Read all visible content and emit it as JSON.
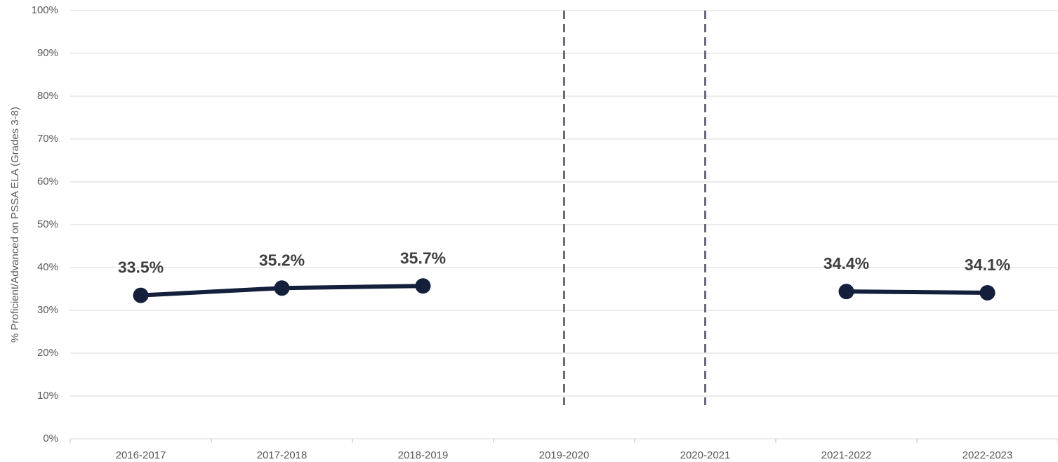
{
  "chart_data": {
    "type": "line",
    "y_label": "% Proficient/Advanced on PSSA ELA (Grades 3-8)",
    "categories": [
      "2016-2017",
      "2017-2018",
      "2018-2019",
      "2019-2020",
      "2020-2021",
      "2021-2022",
      "2022-2023"
    ],
    "series": [
      {
        "color": "#141f3c",
        "values": [
          33.5,
          35.2,
          35.7,
          null,
          null,
          34.4,
          34.1
        ],
        "value_labels": [
          "33.5%",
          "35.2%",
          "35.7%",
          null,
          null,
          "34.4%",
          "34.1%"
        ]
      }
    ],
    "ylim": [
      0,
      100
    ],
    "yticks": [
      {
        "value": 0,
        "label": "0%"
      },
      {
        "value": 10,
        "label": "10%"
      },
      {
        "value": 20,
        "label": "20%"
      },
      {
        "value": 30,
        "label": "30%"
      },
      {
        "value": 40,
        "label": "40%"
      },
      {
        "value": 50,
        "label": "50%"
      },
      {
        "value": 60,
        "label": "60%"
      },
      {
        "value": 70,
        "label": "70%"
      },
      {
        "value": 80,
        "label": "80%"
      },
      {
        "value": 90,
        "label": "90%"
      },
      {
        "value": 100,
        "label": "100%"
      }
    ],
    "grid": true
  }
}
